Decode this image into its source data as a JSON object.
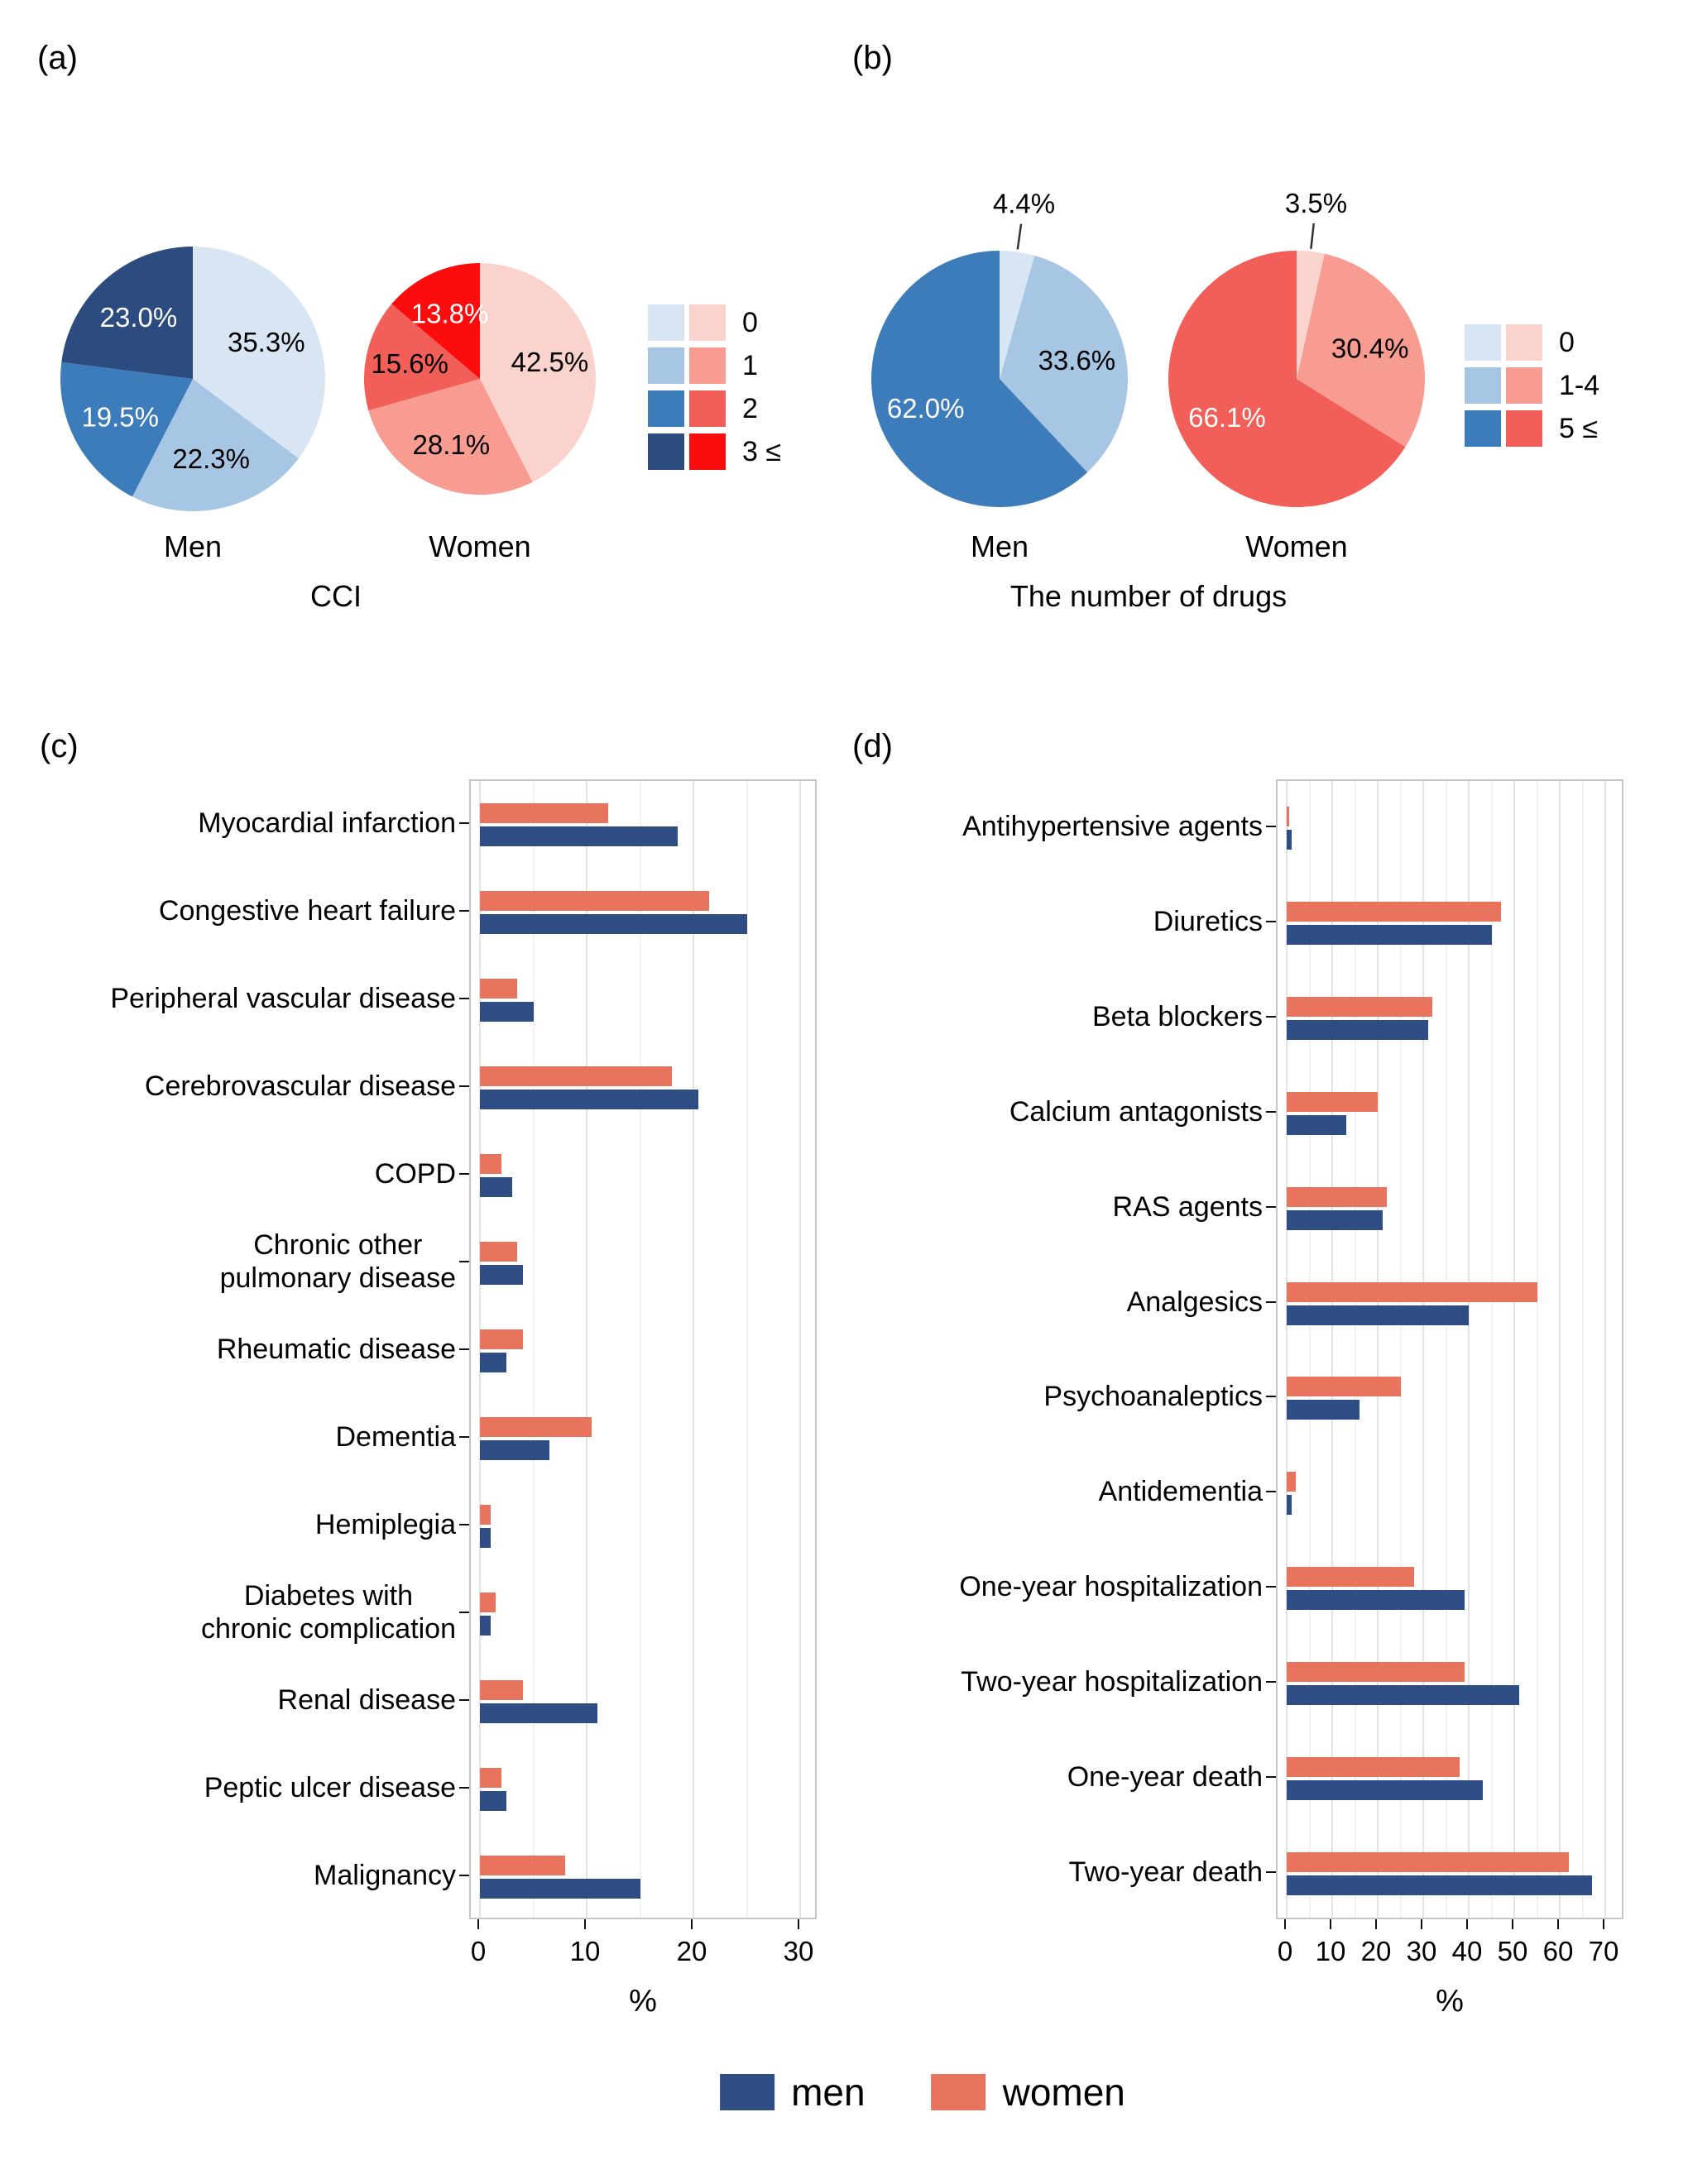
{
  "figure": {
    "panel_letters": {
      "a": "(a)",
      "b": "(b)",
      "c": "(c)",
      "d": "(d)"
    },
    "bottom_legend": [
      {
        "label": "men",
        "color": "#2F4D85"
      },
      {
        "label": "women",
        "color": "#E8745E"
      }
    ]
  },
  "chart_data": [
    {
      "id": "cci_pies",
      "type": "pie",
      "panel": "a",
      "axis_title": "CCI",
      "legend": {
        "labels": [
          "0",
          "1",
          "2",
          "3 ≤"
        ],
        "men_colors": [
          "#D8E6F4",
          "#A6C6E4",
          "#3D7CBA",
          "#2C4B7E"
        ],
        "women_colors": [
          "#FBD3CD",
          "#F89B90",
          "#F25F58",
          "#FC0D0D"
        ]
      },
      "pies": [
        {
          "name": "Men",
          "labels": [
            "0",
            "1",
            "2",
            "3 ≤"
          ],
          "values": [
            35.3,
            22.3,
            19.5,
            23.0
          ],
          "display": [
            "35.3%",
            "22.3%",
            "19.5%",
            "23.0%"
          ],
          "colors": [
            "#D8E6F4",
            "#A6C6E4",
            "#3D7CBA",
            "#2C4B7E"
          ],
          "text_colors": [
            "#000000",
            "#000000",
            "#FFFFFF",
            "#FFFFFF"
          ]
        },
        {
          "name": "Women",
          "labels": [
            "0",
            "1",
            "2",
            "3 ≤"
          ],
          "values": [
            42.5,
            28.1,
            15.6,
            13.8
          ],
          "display": [
            "42.5%",
            "28.1%",
            "15.6%",
            "13.8%"
          ],
          "colors": [
            "#FBD3CD",
            "#F89B90",
            "#F25F58",
            "#FC0D0D"
          ],
          "text_colors": [
            "#000000",
            "#000000",
            "#000000",
            "#FFFFFF"
          ]
        }
      ]
    },
    {
      "id": "drug_count_pies",
      "type": "pie",
      "panel": "b",
      "axis_title": "The number of drugs",
      "legend": {
        "labels": [
          "0",
          "1-4",
          "5 ≤"
        ],
        "men_colors": [
          "#D8E6F4",
          "#A6C6E4",
          "#3D7CBA"
        ],
        "women_colors": [
          "#FBD3CD",
          "#F89B90",
          "#F25F58"
        ]
      },
      "pies": [
        {
          "name": "Men",
          "labels": [
            "0",
            "1-4",
            "5 ≤"
          ],
          "values": [
            4.4,
            33.6,
            62.0
          ],
          "display": [
            "4.4%",
            "33.6%",
            "62.0%"
          ],
          "colors": [
            "#D8E6F4",
            "#A6C6E4",
            "#3D7CBA"
          ],
          "text_colors": [
            "#000000",
            "#000000",
            "#FFFFFF"
          ],
          "outside": [
            true,
            false,
            false
          ]
        },
        {
          "name": "Women",
          "labels": [
            "0",
            "1-4",
            "5 ≤"
          ],
          "values": [
            3.5,
            30.4,
            66.1
          ],
          "display": [
            "3.5%",
            "30.4%",
            "66.1%"
          ],
          "colors": [
            "#FBD3CD",
            "#F89B90",
            "#F25F58"
          ],
          "text_colors": [
            "#000000",
            "#000000",
            "#FFFFFF"
          ],
          "outside": [
            true,
            false,
            false
          ]
        }
      ]
    },
    {
      "id": "comorbidity_bars",
      "type": "bar",
      "panel": "c",
      "orientation": "horizontal",
      "xlabel": "%",
      "xlim": [
        0,
        30
      ],
      "xticks": [
        0,
        10,
        20,
        30
      ],
      "categories": [
        "Myocardial infarction",
        "Congestive heart failure",
        "Peripheral vascular disease",
        "Cerebrovascular disease",
        "COPD",
        "Chronic other\npulmonary disease",
        "Rheumatic disease",
        "Dementia",
        "Hemiplegia",
        "Diabetes with\nchronic complication",
        "Renal disease",
        "Peptic ulcer disease",
        "Malignancy"
      ],
      "series": [
        {
          "name": "women",
          "color": "#E8745E",
          "values": [
            12,
            21.5,
            3.5,
            18,
            2,
            3.5,
            4,
            10.5,
            1,
            1.5,
            4,
            2,
            8
          ]
        },
        {
          "name": "men",
          "color": "#2F4D85",
          "values": [
            18.5,
            25,
            5,
            20.5,
            3,
            4,
            2.5,
            6.5,
            1,
            1,
            11,
            2.5,
            15
          ]
        }
      ]
    },
    {
      "id": "drug_outcome_bars",
      "type": "bar",
      "panel": "d",
      "orientation": "horizontal",
      "xlabel": "%",
      "xlim": [
        0,
        70
      ],
      "xticks": [
        0,
        10,
        20,
        30,
        40,
        50,
        60,
        70
      ],
      "categories": [
        "Antihypertensive agents",
        "Diuretics",
        "Beta blockers",
        "Calcium antagonists",
        "RAS agents",
        "Analgesics",
        "Psychoanaleptics",
        "Antidementia",
        "One-year hospitalization",
        "Two-year hospitalization",
        "One-year death",
        "Two-year death"
      ],
      "series": [
        {
          "name": "women",
          "color": "#E8745E",
          "values": [
            0.5,
            47,
            32,
            20,
            22,
            55,
            25,
            2,
            28,
            39,
            38,
            62
          ]
        },
        {
          "name": "men",
          "color": "#2F4D85",
          "values": [
            1,
            45,
            31,
            13,
            21,
            40,
            16,
            1,
            39,
            51,
            43,
            67
          ]
        }
      ]
    }
  ]
}
